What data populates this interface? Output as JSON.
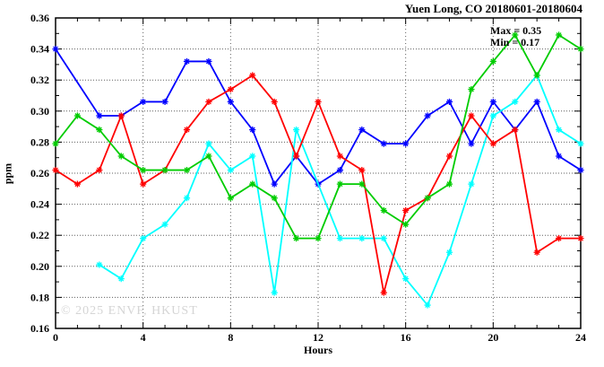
{
  "title": "Yuen Long, CO 20180601-20180604",
  "annotation": {
    "max_label": "Max = 0.35",
    "min_label": "Min = 0.17"
  },
  "watermark": "© 2025 ENVF, HKUST",
  "chart_data": {
    "type": "line",
    "title": "Yuen Long, CO 20180601-20180604",
    "xlabel": "Hours",
    "ylabel": "ppm",
    "xlim": [
      0,
      24
    ],
    "ylim": [
      0.16,
      0.36
    ],
    "grid": true,
    "legend_position": "none",
    "stat_max": 0.35,
    "stat_min": 0.17,
    "x_tick_labels": [
      "0",
      "4",
      "8",
      "12",
      "16",
      "20",
      "24"
    ],
    "x_tick_values": [
      0,
      4,
      8,
      12,
      16,
      20,
      24
    ],
    "x_minor_step": 1,
    "y_tick_labels": [
      "0.16",
      "0.18",
      "0.20",
      "0.22",
      "0.24",
      "0.26",
      "0.28",
      "0.30",
      "0.32",
      "0.34",
      "0.36"
    ],
    "y_tick_values": [
      0.16,
      0.18,
      0.2,
      0.22,
      0.24,
      0.26,
      0.28,
      0.3,
      0.32,
      0.34,
      0.36
    ],
    "y_minor_step": 0.01,
    "x": [
      0,
      1,
      2,
      3,
      4,
      5,
      6,
      7,
      8,
      9,
      10,
      11,
      12,
      13,
      14,
      15,
      16,
      17,
      18,
      19,
      20,
      21,
      22,
      23,
      24
    ],
    "series": [
      {
        "name": "series-blue",
        "color": "#0000ff",
        "values": [
          0.34,
          null,
          0.297,
          0.297,
          0.306,
          0.306,
          0.332,
          0.332,
          0.306,
          0.288,
          0.253,
          0.271,
          0.253,
          0.262,
          0.288,
          0.279,
          0.279,
          0.297,
          0.306,
          0.279,
          0.306,
          0.288,
          0.306,
          0.271,
          0.262
        ]
      },
      {
        "name": "series-cyan",
        "color": "#00ffff",
        "values": [
          null,
          null,
          0.201,
          0.192,
          0.218,
          0.227,
          0.244,
          0.279,
          0.262,
          0.271,
          0.183,
          0.288,
          null,
          0.218,
          0.218,
          0.218,
          0.192,
          0.175,
          0.209,
          0.253,
          0.297,
          0.306,
          0.323,
          0.288,
          0.279
        ]
      },
      {
        "name": "series-red",
        "color": "#ff0000",
        "values": [
          0.262,
          0.253,
          0.262,
          0.297,
          0.253,
          0.262,
          0.288,
          0.306,
          0.314,
          0.323,
          0.306,
          0.271,
          0.306,
          0.271,
          0.262,
          0.183,
          0.236,
          0.244,
          0.271,
          0.297,
          0.279,
          0.288,
          0.209,
          0.218,
          0.218
        ]
      },
      {
        "name": "series-green",
        "color": "#00cc00",
        "values": [
          0.279,
          0.297,
          0.288,
          0.271,
          0.262,
          0.262,
          0.262,
          0.271,
          0.244,
          0.253,
          0.244,
          0.218,
          0.218,
          0.253,
          0.253,
          0.236,
          0.227,
          0.244,
          0.253,
          0.314,
          0.332,
          0.349,
          0.323,
          0.349,
          0.34
        ]
      }
    ]
  },
  "frame_color": "#000000",
  "grid_color": "#606060"
}
